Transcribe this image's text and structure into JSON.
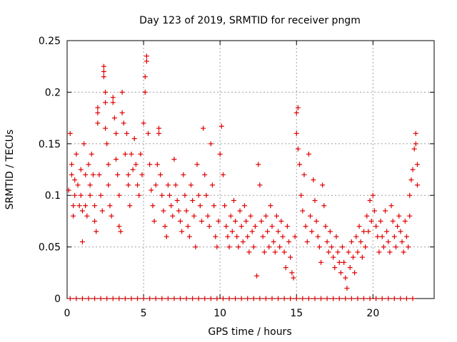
{
  "chart_data": {
    "type": "scatter",
    "title": "Day 123 of 2019, SRMTID for receiver pngm",
    "xlabel": "GPS time / hours",
    "ylabel": "SRMTID / TECUs",
    "xlim": [
      0,
      24
    ],
    "ylim": [
      0,
      0.25
    ],
    "xticks": [
      0,
      5,
      10,
      15,
      20
    ],
    "xtick_labels": [
      "0",
      "5",
      "10",
      "15",
      "20"
    ],
    "yticks": [
      0,
      0.05,
      0.1,
      0.15,
      0.2,
      0.25
    ],
    "ytick_labels": [
      "0",
      "0.05",
      "0.1",
      "0.15",
      "0.2",
      "0.25"
    ],
    "grid": true,
    "marker": "+",
    "color": "#e00000",
    "series": [
      {
        "name": "SRMTID",
        "points": [
          [
            0.1,
            0.105
          ],
          [
            0.2,
            0.16
          ],
          [
            0.3,
            0.13
          ],
          [
            0.3,
            0.12
          ],
          [
            0.4,
            0.09
          ],
          [
            0.4,
            0.08
          ],
          [
            0.5,
            0.1
          ],
          [
            0.5,
            0.115
          ],
          [
            0.6,
            0.14
          ],
          [
            0.7,
            0.11
          ],
          [
            0.8,
            0.09
          ],
          [
            0.9,
            0.125
          ],
          [
            0.9,
            0.1
          ],
          [
            1.0,
            0.085
          ],
          [
            1.0,
            0.055
          ],
          [
            1.1,
            0.15
          ],
          [
            1.2,
            0.09
          ],
          [
            1.2,
            0.12
          ],
          [
            1.3,
            0.08
          ],
          [
            1.4,
            0.13
          ],
          [
            1.5,
            0.1
          ],
          [
            1.5,
            0.11
          ],
          [
            1.6,
            0.14
          ],
          [
            1.7,
            0.12
          ],
          [
            1.8,
            0.09
          ],
          [
            1.8,
            0.075
          ],
          [
            1.9,
            0.065
          ],
          [
            2.0,
            0.17
          ],
          [
            2.0,
            0.18
          ],
          [
            2.0,
            0.185
          ],
          [
            2.1,
            0.12
          ],
          [
            2.2,
            0.1
          ],
          [
            2.3,
            0.085
          ],
          [
            2.4,
            0.225
          ],
          [
            2.4,
            0.22
          ],
          [
            2.4,
            0.215
          ],
          [
            2.5,
            0.2
          ],
          [
            2.5,
            0.19
          ],
          [
            2.5,
            0.165
          ],
          [
            2.6,
            0.15
          ],
          [
            2.7,
            0.13
          ],
          [
            2.7,
            0.11
          ],
          [
            2.8,
            0.09
          ],
          [
            2.9,
            0.08
          ],
          [
            3.0,
            0.195
          ],
          [
            3.0,
            0.19
          ],
          [
            3.1,
            0.175
          ],
          [
            3.2,
            0.16
          ],
          [
            3.2,
            0.135
          ],
          [
            3.3,
            0.12
          ],
          [
            3.4,
            0.1
          ],
          [
            3.4,
            0.07
          ],
          [
            3.5,
            0.065
          ],
          [
            3.6,
            0.2
          ],
          [
            3.6,
            0.18
          ],
          [
            3.7,
            0.17
          ],
          [
            3.8,
            0.14
          ],
          [
            3.9,
            0.16
          ],
          [
            4.0,
            0.12
          ],
          [
            4.0,
            0.11
          ],
          [
            4.1,
            0.09
          ],
          [
            4.2,
            0.14
          ],
          [
            4.3,
            0.125
          ],
          [
            4.4,
            0.155
          ],
          [
            4.5,
            0.13
          ],
          [
            4.6,
            0.11
          ],
          [
            4.7,
            0.1
          ],
          [
            4.8,
            0.14
          ],
          [
            4.9,
            0.12
          ],
          [
            5.0,
            0.17
          ],
          [
            5.1,
            0.215
          ],
          [
            5.1,
            0.2
          ],
          [
            5.2,
            0.235
          ],
          [
            5.2,
            0.23
          ],
          [
            5.3,
            0.16
          ],
          [
            5.4,
            0.13
          ],
          [
            5.5,
            0.105
          ],
          [
            5.6,
            0.09
          ],
          [
            5.7,
            0.075
          ],
          [
            5.8,
            0.11
          ],
          [
            5.9,
            0.13
          ],
          [
            6.0,
            0.165
          ],
          [
            6.0,
            0.16
          ],
          [
            6.1,
            0.12
          ],
          [
            6.2,
            0.1
          ],
          [
            6.3,
            0.085
          ],
          [
            6.4,
            0.07
          ],
          [
            6.5,
            0.06
          ],
          [
            6.6,
            0.11
          ],
          [
            6.7,
            0.1
          ],
          [
            6.8,
            0.09
          ],
          [
            6.9,
            0.08
          ],
          [
            7.0,
            0.135
          ],
          [
            7.1,
            0.11
          ],
          [
            7.2,
            0.095
          ],
          [
            7.3,
            0.085
          ],
          [
            7.4,
            0.075
          ],
          [
            7.5,
            0.065
          ],
          [
            7.6,
            0.12
          ],
          [
            7.7,
            0.1
          ],
          [
            7.8,
            0.085
          ],
          [
            7.9,
            0.07
          ],
          [
            8.0,
            0.06
          ],
          [
            8.1,
            0.11
          ],
          [
            8.2,
            0.095
          ],
          [
            8.3,
            0.08
          ],
          [
            8.4,
            0.05
          ],
          [
            8.5,
            0.13
          ],
          [
            8.6,
            0.1
          ],
          [
            8.7,
            0.09
          ],
          [
            8.8,
            0.075
          ],
          [
            8.9,
            0.165
          ],
          [
            9.0,
            0.12
          ],
          [
            9.1,
            0.1
          ],
          [
            9.2,
            0.08
          ],
          [
            9.3,
            0.07
          ],
          [
            9.4,
            0.15
          ],
          [
            9.5,
            0.11
          ],
          [
            9.6,
            0.09
          ],
          [
            9.7,
            0.06
          ],
          [
            9.8,
            0.05
          ],
          [
            9.9,
            0.075
          ],
          [
            10.0,
            0.14
          ],
          [
            10.1,
            0.167
          ],
          [
            10.2,
            0.12
          ],
          [
            10.3,
            0.09
          ],
          [
            10.4,
            0.07
          ],
          [
            10.5,
            0.06
          ],
          [
            10.6,
            0.05
          ],
          [
            10.7,
            0.08
          ],
          [
            10.8,
            0.065
          ],
          [
            10.9,
            0.095
          ],
          [
            11.0,
            0.075
          ],
          [
            11.1,
            0.06
          ],
          [
            11.2,
            0.05
          ],
          [
            11.3,
            0.085
          ],
          [
            11.4,
            0.07
          ],
          [
            11.5,
            0.055
          ],
          [
            11.6,
            0.09
          ],
          [
            11.7,
            0.075
          ],
          [
            11.8,
            0.06
          ],
          [
            11.9,
            0.045
          ],
          [
            12.0,
            0.08
          ],
          [
            12.1,
            0.065
          ],
          [
            12.2,
            0.05
          ],
          [
            12.3,
            0.07
          ],
          [
            12.4,
            0.022
          ],
          [
            12.5,
            0.13
          ],
          [
            12.6,
            0.11
          ],
          [
            12.7,
            0.075
          ],
          [
            12.8,
            0.06
          ],
          [
            12.9,
            0.045
          ],
          [
            13.0,
            0.08
          ],
          [
            13.1,
            0.065
          ],
          [
            13.2,
            0.05
          ],
          [
            13.3,
            0.09
          ],
          [
            13.4,
            0.07
          ],
          [
            13.5,
            0.055
          ],
          [
            13.6,
            0.045
          ],
          [
            13.7,
            0.08
          ],
          [
            13.8,
            0.065
          ],
          [
            13.9,
            0.05
          ],
          [
            14.0,
            0.075
          ],
          [
            14.1,
            0.06
          ],
          [
            14.2,
            0.045
          ],
          [
            14.3,
            0.03
          ],
          [
            14.4,
            0.07
          ],
          [
            14.5,
            0.055
          ],
          [
            14.6,
            0.04
          ],
          [
            14.7,
            0.025
          ],
          [
            14.8,
            0.02
          ],
          [
            14.9,
            0.06
          ],
          [
            15.0,
            0.18
          ],
          [
            15.0,
            0.16
          ],
          [
            15.1,
            0.185
          ],
          [
            15.1,
            0.145
          ],
          [
            15.2,
            0.13
          ],
          [
            15.3,
            0.1
          ],
          [
            15.4,
            0.085
          ],
          [
            15.5,
            0.12
          ],
          [
            15.6,
            0.07
          ],
          [
            15.7,
            0.055
          ],
          [
            15.8,
            0.14
          ],
          [
            15.9,
            0.08
          ],
          [
            16.0,
            0.065
          ],
          [
            16.1,
            0.115
          ],
          [
            16.2,
            0.095
          ],
          [
            16.3,
            0.075
          ],
          [
            16.4,
            0.06
          ],
          [
            16.5,
            0.05
          ],
          [
            16.6,
            0.035
          ],
          [
            16.7,
            0.11
          ],
          [
            16.8,
            0.09
          ],
          [
            16.9,
            0.07
          ],
          [
            17.0,
            0.055
          ],
          [
            17.1,
            0.045
          ],
          [
            17.2,
            0.065
          ],
          [
            17.3,
            0.05
          ],
          [
            17.4,
            0.04
          ],
          [
            17.5,
            0.03
          ],
          [
            17.6,
            0.06
          ],
          [
            17.7,
            0.045
          ],
          [
            17.8,
            0.035
          ],
          [
            17.9,
            0.025
          ],
          [
            18.0,
            0.05
          ],
          [
            18.1,
            0.035
          ],
          [
            18.2,
            0.02
          ],
          [
            18.3,
            0.01
          ],
          [
            18.4,
            0.045
          ],
          [
            18.5,
            0.03
          ],
          [
            18.6,
            0.055
          ],
          [
            18.7,
            0.04
          ],
          [
            18.8,
            0.025
          ],
          [
            18.9,
            0.06
          ],
          [
            19.0,
            0.045
          ],
          [
            19.1,
            0.07
          ],
          [
            19.2,
            0.055
          ],
          [
            19.3,
            0.04
          ],
          [
            19.4,
            0.065
          ],
          [
            19.5,
            0.05
          ],
          [
            19.6,
            0.08
          ],
          [
            19.7,
            0.065
          ],
          [
            19.8,
            0.095
          ],
          [
            19.9,
            0.075
          ],
          [
            20.0,
            0.1
          ],
          [
            20.1,
            0.085
          ],
          [
            20.2,
            0.07
          ],
          [
            20.3,
            0.06
          ],
          [
            20.4,
            0.045
          ],
          [
            20.5,
            0.075
          ],
          [
            20.6,
            0.06
          ],
          [
            20.7,
            0.05
          ],
          [
            20.8,
            0.085
          ],
          [
            20.9,
            0.065
          ],
          [
            21.0,
            0.055
          ],
          [
            21.1,
            0.045
          ],
          [
            21.2,
            0.09
          ],
          [
            21.3,
            0.075
          ],
          [
            21.4,
            0.06
          ],
          [
            21.5,
            0.05
          ],
          [
            21.6,
            0.07
          ],
          [
            21.7,
            0.08
          ],
          [
            21.8,
            0.065
          ],
          [
            21.9,
            0.055
          ],
          [
            22.0,
            0.045
          ],
          [
            22.1,
            0.075
          ],
          [
            22.2,
            0.06
          ],
          [
            22.3,
            0.05
          ],
          [
            22.4,
            0.08
          ],
          [
            22.4,
            0.1
          ],
          [
            22.5,
            0.115
          ],
          [
            22.6,
            0.125
          ],
          [
            22.7,
            0.145
          ],
          [
            22.8,
            0.15
          ],
          [
            22.8,
            0.16
          ],
          [
            22.9,
            0.13
          ],
          [
            22.9,
            0.11
          ]
        ]
      },
      {
        "name": "zero-baseline",
        "points": [
          [
            0.2,
            0
          ],
          [
            0.6,
            0
          ],
          [
            1.0,
            0
          ],
          [
            1.4,
            0
          ],
          [
            1.8,
            0
          ],
          [
            2.2,
            0
          ],
          [
            2.6,
            0
          ],
          [
            3.0,
            0
          ],
          [
            3.4,
            0
          ],
          [
            3.8,
            0
          ],
          [
            4.2,
            0
          ],
          [
            4.6,
            0
          ],
          [
            5.0,
            0
          ],
          [
            5.4,
            0
          ],
          [
            5.8,
            0
          ],
          [
            6.2,
            0
          ],
          [
            6.6,
            0
          ],
          [
            7.0,
            0
          ],
          [
            7.4,
            0
          ],
          [
            7.8,
            0
          ],
          [
            8.2,
            0
          ],
          [
            8.6,
            0
          ],
          [
            9.0,
            0
          ],
          [
            9.4,
            0
          ],
          [
            9.8,
            0
          ],
          [
            10.2,
            0
          ],
          [
            10.6,
            0
          ],
          [
            11.0,
            0
          ],
          [
            11.4,
            0
          ],
          [
            11.8,
            0
          ],
          [
            12.2,
            0
          ],
          [
            12.6,
            0
          ],
          [
            13.0,
            0
          ],
          [
            13.4,
            0
          ],
          [
            13.8,
            0
          ],
          [
            14.2,
            0
          ],
          [
            14.6,
            0
          ],
          [
            15.0,
            0
          ],
          [
            15.4,
            0
          ],
          [
            15.8,
            0
          ],
          [
            16.2,
            0
          ],
          [
            16.6,
            0
          ],
          [
            17.0,
            0
          ],
          [
            17.4,
            0
          ],
          [
            17.8,
            0
          ],
          [
            18.2,
            0
          ],
          [
            18.6,
            0
          ],
          [
            19.0,
            0
          ],
          [
            19.4,
            0
          ],
          [
            19.8,
            0
          ],
          [
            20.2,
            0
          ],
          [
            20.6,
            0
          ],
          [
            21.0,
            0
          ],
          [
            21.4,
            0
          ],
          [
            21.8,
            0
          ],
          [
            22.2,
            0
          ],
          [
            22.6,
            0
          ]
        ]
      }
    ]
  }
}
